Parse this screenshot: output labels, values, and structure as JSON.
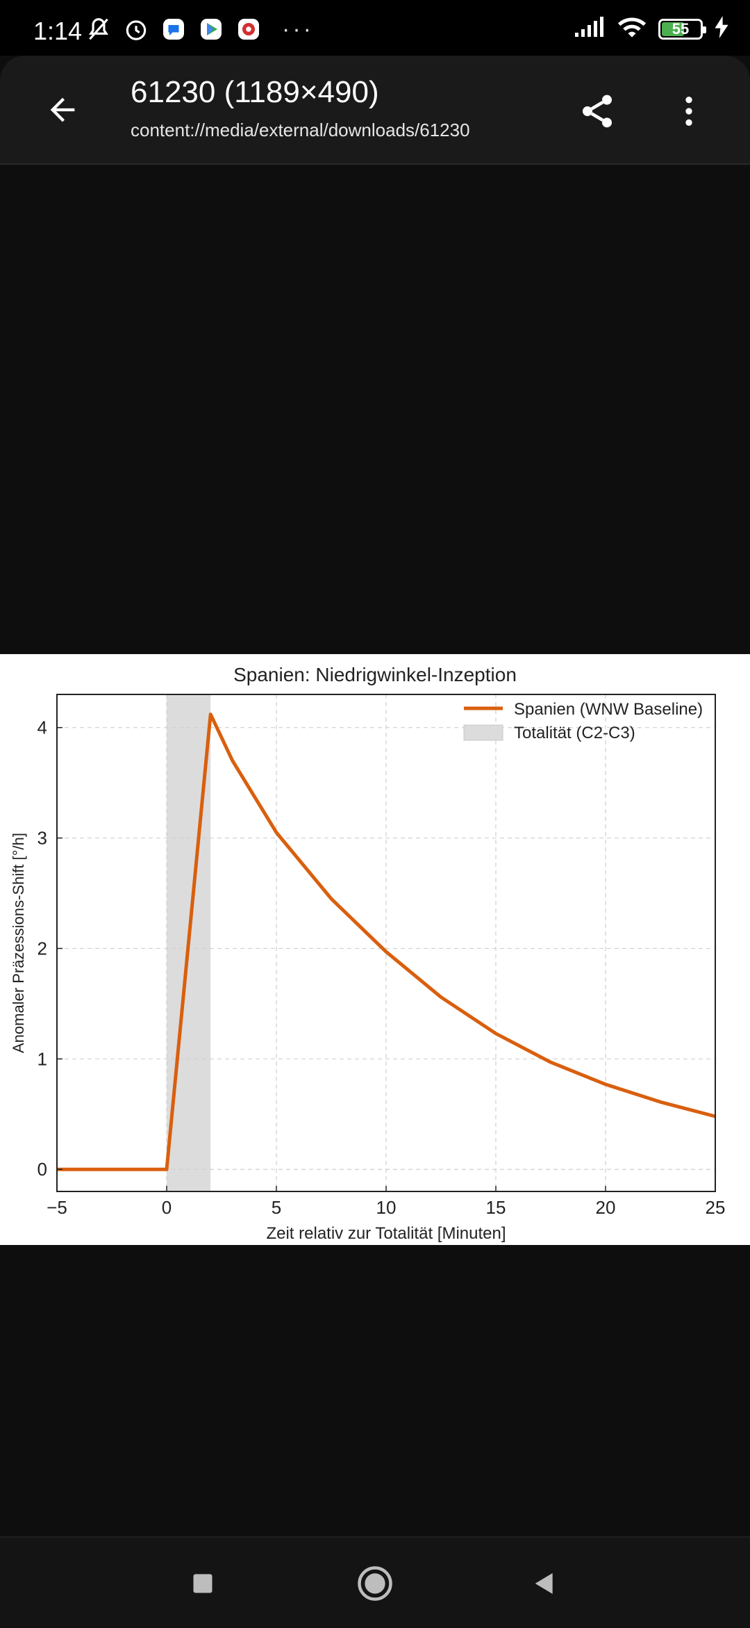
{
  "status_bar": {
    "time": "1:14",
    "more": "···",
    "battery": "55",
    "icons": [
      "mute-icon",
      "alarm-icon",
      "messages-icon",
      "play-icon",
      "app-icon",
      "signal-icon",
      "wifi-icon",
      "battery-icon",
      "charging-icon"
    ]
  },
  "app_bar": {
    "title": "61230 (1189×490)",
    "subtitle": "content://media/external/downloads/61230",
    "icons": [
      "back-arrow-icon",
      "share-icon",
      "more-vert-icon"
    ]
  },
  "chart_data": {
    "type": "line",
    "title": "Spanien: Niedrigwinkel-Inzeption",
    "xlabel": "Zeit relativ zur Totalität [Minuten]",
    "ylabel": "Anomaler Präzessions-Shift [°/h]",
    "xlim": [
      -5,
      25
    ],
    "ylim": [
      -0.2,
      4.3
    ],
    "xticks": [
      -5,
      0,
      5,
      10,
      15,
      20,
      25
    ],
    "yticks": [
      0,
      1,
      2,
      3,
      4
    ],
    "grid": true,
    "legend_position": "top-right",
    "series": [
      {
        "name": "Spanien (WNW Baseline)",
        "color": "#d95f0e",
        "x": [
          -5,
          0,
          2,
          3,
          5,
          7.5,
          10,
          12.5,
          15,
          17.5,
          20,
          22.5,
          25
        ],
        "y": [
          0,
          0,
          4.12,
          3.7,
          3.05,
          2.45,
          1.97,
          1.56,
          1.23,
          0.97,
          0.77,
          0.61,
          0.48
        ]
      }
    ],
    "shaded_region": {
      "label": "Totalität (C2-C3)",
      "x": [
        0,
        2
      ],
      "color": "#dcdcdc"
    }
  },
  "nav_bar": {
    "icons": [
      "recents-square-icon",
      "home-circle-icon",
      "back-triangle-icon"
    ]
  }
}
